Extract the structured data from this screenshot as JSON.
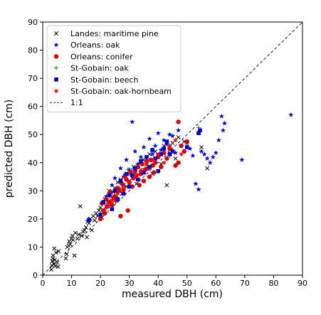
{
  "chart_data": {
    "type": "scatter",
    "title": "",
    "xlabel": "measured DBH (cm)",
    "ylabel": "predicted DBH (cm)",
    "xlim": [
      0,
      90
    ],
    "ylim": [
      0,
      90
    ],
    "xticks": [
      0,
      10,
      20,
      30,
      40,
      50,
      60,
      70,
      80,
      90
    ],
    "yticks": [
      0,
      10,
      20,
      30,
      40,
      50,
      60,
      70,
      80,
      90
    ],
    "grid": false,
    "legend_position": "top-left",
    "reference_line": {
      "name": "1:1",
      "style": "dashed",
      "color": "#000000",
      "from": [
        0,
        0
      ],
      "to": [
        90,
        90
      ]
    },
    "series": [
      {
        "name": "Landes: maritime pine",
        "marker": "x",
        "color": "#000000",
        "points": [
          [
            3.0,
            2.0
          ],
          [
            3.2,
            3.5
          ],
          [
            3.3,
            5.0
          ],
          [
            3.5,
            6.0
          ],
          [
            3.6,
            7.0
          ],
          [
            3.8,
            4.0
          ],
          [
            4.0,
            9.5
          ],
          [
            4.2,
            5.5
          ],
          [
            4.4,
            3.2
          ],
          [
            4.6,
            8.0
          ],
          [
            5.0,
            4.5
          ],
          [
            5.3,
            3.0
          ],
          [
            5.5,
            8.5
          ],
          [
            8.0,
            6.0
          ],
          [
            8.3,
            7.5
          ],
          [
            8.5,
            10.0
          ],
          [
            9.0,
            10.5
          ],
          [
            9.2,
            12.0
          ],
          [
            9.5,
            11.0
          ],
          [
            10.0,
            13.0
          ],
          [
            10.3,
            14.0
          ],
          [
            10.5,
            12.5
          ],
          [
            11.0,
            7.0
          ],
          [
            11.3,
            15.0
          ],
          [
            12.0,
            13.0
          ],
          [
            12.5,
            14.5
          ],
          [
            13.0,
            24.5
          ],
          [
            13.5,
            14.0
          ],
          [
            14.0,
            15.5
          ],
          [
            14.5,
            16.0
          ],
          [
            15.0,
            17.0
          ],
          [
            15.3,
            13.5
          ],
          [
            15.5,
            19.0
          ],
          [
            16.0,
            18.5
          ],
          [
            16.5,
            20.0
          ],
          [
            17.0,
            16.0
          ],
          [
            17.5,
            21.0
          ],
          [
            18.0,
            19.5
          ],
          [
            18.5,
            22.0
          ],
          [
            19.0,
            21.0
          ],
          [
            19.5,
            23.0
          ],
          [
            20.0,
            24.0
          ],
          [
            20.5,
            20.5
          ],
          [
            21.0,
            25.5
          ],
          [
            21.3,
            22.5
          ],
          [
            21.5,
            27.0
          ],
          [
            22.0,
            24.5
          ],
          [
            22.5,
            26.0
          ],
          [
            23.0,
            30.0
          ],
          [
            23.5,
            28.0
          ],
          [
            24.0,
            26.5
          ],
          [
            24.5,
            29.5
          ],
          [
            25.0,
            31.0
          ],
          [
            25.5,
            27.5
          ],
          [
            26.0,
            33.0
          ],
          [
            26.5,
            30.5
          ],
          [
            27.0,
            34.0
          ],
          [
            27.5,
            29.0
          ],
          [
            28.0,
            32.0
          ],
          [
            28.5,
            35.5
          ],
          [
            29.0,
            31.5
          ],
          [
            29.5,
            36.0
          ],
          [
            30.0,
            33.5
          ],
          [
            30.5,
            37.0
          ],
          [
            31.0,
            34.5
          ],
          [
            31.5,
            38.5
          ],
          [
            32.0,
            36.5
          ],
          [
            32.5,
            32.5
          ],
          [
            33.0,
            39.0
          ],
          [
            34.0,
            37.5
          ],
          [
            35.0,
            41.0
          ],
          [
            36.0,
            38.0
          ],
          [
            37.0,
            43.0
          ],
          [
            38.0,
            36.0
          ],
          [
            39.0,
            44.0
          ],
          [
            40.0,
            42.5
          ],
          [
            41.0,
            39.5
          ],
          [
            42.0,
            46.0
          ],
          [
            43.0,
            32.0
          ],
          [
            44.0,
            44.5
          ],
          [
            45.0,
            47.0
          ],
          [
            46.0,
            41.5
          ],
          [
            47.0,
            49.0
          ],
          [
            49.0,
            47.5
          ],
          [
            55.0,
            45.5
          ],
          [
            57.0,
            38.0
          ]
        ]
      },
      {
        "name": "Orleans: oak",
        "marker": "star5",
        "color": "#0000ff",
        "points": [
          [
            16.0,
            20.0
          ],
          [
            22.0,
            28.0
          ],
          [
            24.0,
            32.0
          ],
          [
            25.0,
            34.5
          ],
          [
            26.0,
            29.5
          ],
          [
            27.0,
            38.0
          ],
          [
            28.0,
            35.0
          ],
          [
            29.0,
            41.0
          ],
          [
            30.0,
            37.5
          ],
          [
            31.0,
            54.5
          ],
          [
            32.0,
            44.0
          ],
          [
            33.0,
            39.5
          ],
          [
            34.0,
            42.0
          ],
          [
            35.0,
            45.5
          ],
          [
            36.0,
            40.0
          ],
          [
            37.0,
            48.5
          ],
          [
            38.0,
            43.0
          ],
          [
            39.0,
            46.0
          ],
          [
            40.0,
            50.5
          ],
          [
            41.0,
            44.5
          ],
          [
            42.0,
            48.0
          ],
          [
            43.0,
            46.5
          ],
          [
            44.0,
            50.0
          ],
          [
            45.0,
            49.5
          ],
          [
            46.0,
            43.5
          ],
          [
            47.0,
            51.5
          ],
          [
            48.0,
            46.0
          ],
          [
            49.0,
            44.0
          ],
          [
            50.0,
            47.0
          ],
          [
            51.0,
            45.0
          ],
          [
            52.0,
            42.5
          ],
          [
            53.0,
            32.5
          ],
          [
            54.0,
            30.5
          ],
          [
            55.0,
            44.0
          ],
          [
            56.0,
            43.0
          ],
          [
            57.0,
            41.5
          ],
          [
            58.0,
            40.0
          ],
          [
            59.0,
            42.0
          ],
          [
            60.0,
            43.5
          ],
          [
            61.0,
            48.0
          ],
          [
            62.0,
            56.5
          ],
          [
            62.5,
            51.5
          ],
          [
            63.0,
            54.0
          ],
          [
            69.0,
            41.0
          ],
          [
            86.0,
            57.0
          ]
        ]
      },
      {
        "name": "Orleans: conifer",
        "marker": "circle",
        "color": "#dd0000",
        "points": [
          [
            20.0,
            20.0
          ],
          [
            20.5,
            25.5
          ],
          [
            21.0,
            23.0
          ],
          [
            21.5,
            22.0
          ],
          [
            22.0,
            27.0
          ],
          [
            22.5,
            24.5
          ],
          [
            23.0,
            26.0
          ],
          [
            23.5,
            29.5
          ],
          [
            24.0,
            25.0
          ],
          [
            24.5,
            27.5
          ],
          [
            25.0,
            28.0
          ],
          [
            25.5,
            26.5
          ],
          [
            26.0,
            31.0
          ],
          [
            26.5,
            30.0
          ],
          [
            27.0,
            21.0
          ],
          [
            27.5,
            32.5
          ],
          [
            28.0,
            30.5
          ],
          [
            28.5,
            35.0
          ],
          [
            29.0,
            34.0
          ],
          [
            29.5,
            23.0
          ],
          [
            30.0,
            33.0
          ],
          [
            30.5,
            36.5
          ],
          [
            31.0,
            31.5
          ],
          [
            31.5,
            34.5
          ],
          [
            32.0,
            37.0
          ],
          [
            32.5,
            35.5
          ],
          [
            33.0,
            38.5
          ],
          [
            33.5,
            32.0
          ],
          [
            34.0,
            36.0
          ],
          [
            34.5,
            39.5
          ],
          [
            35.0,
            33.5
          ],
          [
            35.5,
            37.5
          ],
          [
            36.0,
            40.5
          ],
          [
            36.5,
            38.0
          ],
          [
            37.0,
            35.0
          ],
          [
            37.5,
            41.0
          ],
          [
            38.0,
            39.0
          ],
          [
            38.5,
            36.5
          ],
          [
            39.0,
            40.0
          ],
          [
            40.0,
            42.0
          ],
          [
            41.0,
            38.5
          ],
          [
            42.0,
            43.5
          ],
          [
            43.0,
            41.5
          ],
          [
            44.0,
            45.0
          ],
          [
            46.0,
            39.0
          ],
          [
            47.0,
            40.0
          ],
          [
            48.0,
            46.0
          ],
          [
            49.0,
            44.0
          ],
          [
            50.0,
            47.5
          ],
          [
            47.0,
            54.5
          ]
        ]
      },
      {
        "name": "St-Gobain: oak",
        "marker": "plus",
        "color": "#228b22",
        "points": [
          [
            29.5,
            37.5
          ],
          [
            36.0,
            39.0
          ],
          [
            44.0,
            42.5
          ],
          [
            54.0,
            52.5
          ]
        ]
      },
      {
        "name": "St-Gobain: beech",
        "marker": "square",
        "color": "#0000cc",
        "points": [
          [
            16.0,
            19.5
          ],
          [
            20.0,
            21.5
          ],
          [
            21.0,
            26.0
          ],
          [
            23.0,
            28.5
          ],
          [
            24.0,
            23.5
          ],
          [
            25.0,
            30.0
          ],
          [
            26.0,
            27.0
          ],
          [
            27.0,
            33.5
          ],
          [
            28.0,
            29.0
          ],
          [
            29.0,
            36.0
          ],
          [
            30.0,
            31.5
          ],
          [
            31.0,
            35.5
          ],
          [
            32.0,
            38.0
          ],
          [
            33.0,
            34.0
          ],
          [
            34.0,
            40.5
          ],
          [
            35.0,
            36.5
          ],
          [
            36.0,
            42.0
          ],
          [
            37.0,
            38.5
          ],
          [
            38.0,
            44.5
          ],
          [
            39.0,
            41.5
          ],
          [
            40.0,
            37.0
          ],
          [
            41.0,
            43.0
          ],
          [
            42.0,
            45.0
          ],
          [
            43.0,
            47.5
          ],
          [
            44.0,
            43.0
          ],
          [
            45.0,
            44.0
          ],
          [
            50.0,
            45.5
          ],
          [
            54.0,
            50.5
          ],
          [
            54.5,
            51.5
          ]
        ]
      },
      {
        "name": "St-Gobain: oak-hornbeam",
        "marker": "star6",
        "color": "#ff0000",
        "points": [
          [
            22.0,
            24.0
          ],
          [
            24.0,
            26.5
          ],
          [
            26.0,
            29.0
          ],
          [
            28.0,
            31.0
          ],
          [
            30.0,
            33.0
          ],
          [
            32.0,
            35.0
          ],
          [
            34.0,
            37.0
          ],
          [
            36.0,
            39.5
          ],
          [
            38.0,
            41.0
          ],
          [
            40.0,
            43.0
          ],
          [
            42.0,
            40.0
          ],
          [
            44.0,
            46.0
          ],
          [
            46.0,
            48.0
          ],
          [
            48.0,
            43.0
          ]
        ]
      }
    ]
  }
}
